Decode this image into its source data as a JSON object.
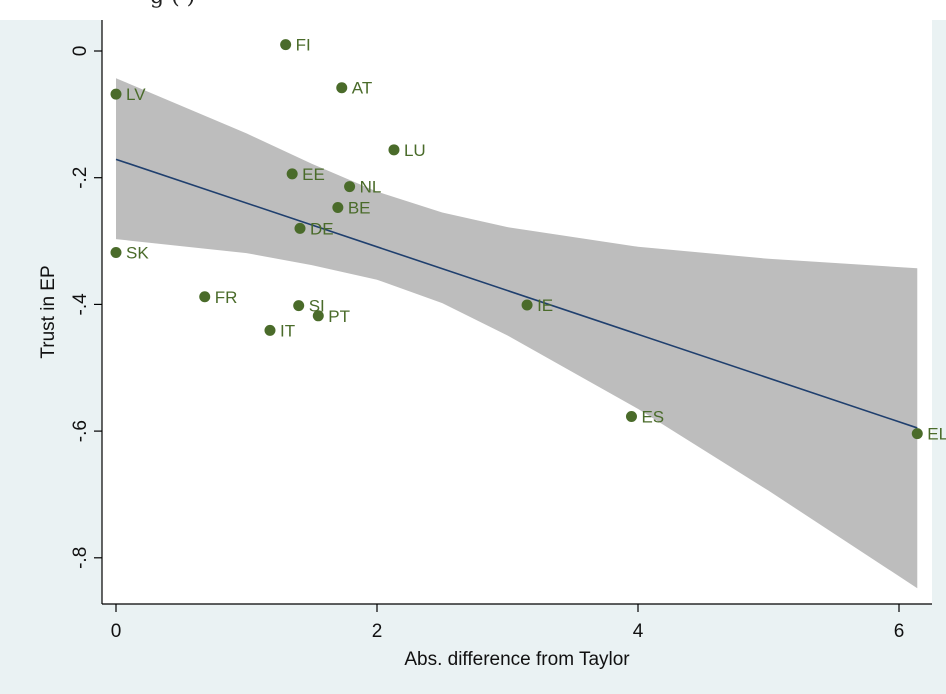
{
  "header": {
    "clipped_title_fragment": "g                              (                        )"
  },
  "chart_data": {
    "type": "scatter",
    "title": "",
    "xlabel": "Abs. difference from Taylor",
    "ylabel": "Trust in EP",
    "xlim": [
      -0.1,
      6.25
    ],
    "ylim": [
      -0.87,
      0.04
    ],
    "x_ticks": [
      0,
      2,
      4,
      6
    ],
    "x_tick_labels": [
      "0",
      "2",
      "4",
      "6"
    ],
    "y_ticks": [
      0,
      -0.2,
      -0.4,
      -0.6,
      -0.8
    ],
    "y_tick_labels": [
      "0",
      "-.2",
      "-.4",
      "-.6",
      "-.8"
    ],
    "grid": false,
    "legend": "none",
    "colors": {
      "point": "#4a6b2a",
      "label": "#4a6b2a",
      "fit_line": "#1f3f6e",
      "ci_band": "#bdbdbd",
      "plot_bg": "#ffffff",
      "outer_bg": "#eaf2f3"
    },
    "points": [
      {
        "label": "FI",
        "x": 1.3,
        "y": 0.01
      },
      {
        "label": "AT",
        "x": 1.73,
        "y": -0.058
      },
      {
        "label": "LV",
        "x": 0.0,
        "y": -0.068
      },
      {
        "label": "LU",
        "x": 2.13,
        "y": -0.156
      },
      {
        "label": "EE",
        "x": 1.35,
        "y": -0.194
      },
      {
        "label": "NL",
        "x": 1.79,
        "y": -0.214
      },
      {
        "label": "BE",
        "x": 1.7,
        "y": -0.247
      },
      {
        "label": "DE",
        "x": 1.41,
        "y": -0.28
      },
      {
        "label": "SK",
        "x": 0.0,
        "y": -0.318
      },
      {
        "label": "FR",
        "x": 0.68,
        "y": -0.388
      },
      {
        "label": "SI",
        "x": 1.4,
        "y": -0.402
      },
      {
        "label": "IE",
        "x": 3.15,
        "y": -0.401
      },
      {
        "label": "PT",
        "x": 1.55,
        "y": -0.418
      },
      {
        "label": "IT",
        "x": 1.18,
        "y": -0.441
      },
      {
        "label": "ES",
        "x": 3.95,
        "y": -0.577
      },
      {
        "label": "EL",
        "x": 6.14,
        "y": -0.604
      }
    ],
    "fit_line": {
      "x": [
        0.0,
        6.14
      ],
      "y": [
        -0.171,
        -0.595
      ]
    },
    "ci_band": {
      "x": [
        0.0,
        1.0,
        1.5,
        2.0,
        2.5,
        3.0,
        4.0,
        5.0,
        6.14
      ],
      "upper": [
        -0.043,
        -0.13,
        -0.178,
        -0.222,
        -0.255,
        -0.278,
        -0.309,
        -0.328,
        -0.343
      ],
      "lower": [
        -0.297,
        -0.319,
        -0.338,
        -0.361,
        -0.398,
        -0.449,
        -0.565,
        -0.694,
        -0.848
      ]
    }
  }
}
